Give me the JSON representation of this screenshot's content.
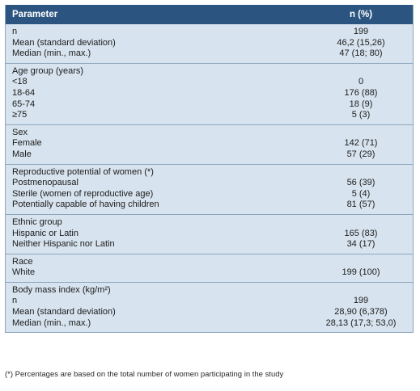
{
  "header": {
    "parameter": "Parameter",
    "n_pct": "n (%)"
  },
  "sections": [
    {
      "labels": [
        "n",
        "Mean (standard deviation)",
        "Median (min., max.)"
      ],
      "values": [
        "199",
        "46,2 (15,26)",
        "47 (18; 80)"
      ]
    },
    {
      "labels": [
        "Age group (years)",
        "<18",
        "18-64",
        "65-74",
        "≥75"
      ],
      "values": [
        "",
        "0",
        "176 (88)",
        "18 (9)",
        "5 (3)"
      ]
    },
    {
      "labels": [
        "Sex",
        "Female",
        "Male"
      ],
      "values": [
        "",
        "142 (71)",
        "57 (29)"
      ]
    },
    {
      "labels": [
        "Reproductive potential of women (*)",
        "Postmenopausal",
        "Sterile (women of reproductive age)",
        "Potentially capable of having children"
      ],
      "values": [
        "",
        "56 (39)",
        "5 (4)",
        "81 (57)"
      ]
    },
    {
      "labels": [
        "Ethnic group",
        "Hispanic or Latin",
        "Neither Hispanic nor Latin"
      ],
      "values": [
        "",
        "165 (83)",
        "34 (17)"
      ]
    },
    {
      "labels": [
        "Race",
        "White"
      ],
      "values": [
        "",
        "199 (100)"
      ]
    },
    {
      "labels": [
        "Body mass index (kg/m²)",
        "n",
        "Mean (standard deviation)",
        "Median (min., max.)"
      ],
      "values": [
        "",
        "199",
        "28,90 (6,378)",
        "28,13 (17,3; 53,0)"
      ]
    }
  ],
  "footnote": "(*) Percentages are based on the total number of women participating in the study",
  "colors": {
    "header_bg": "#2b5580",
    "body_bg": "#d7e3ee",
    "rule": "#8ea6bd"
  }
}
